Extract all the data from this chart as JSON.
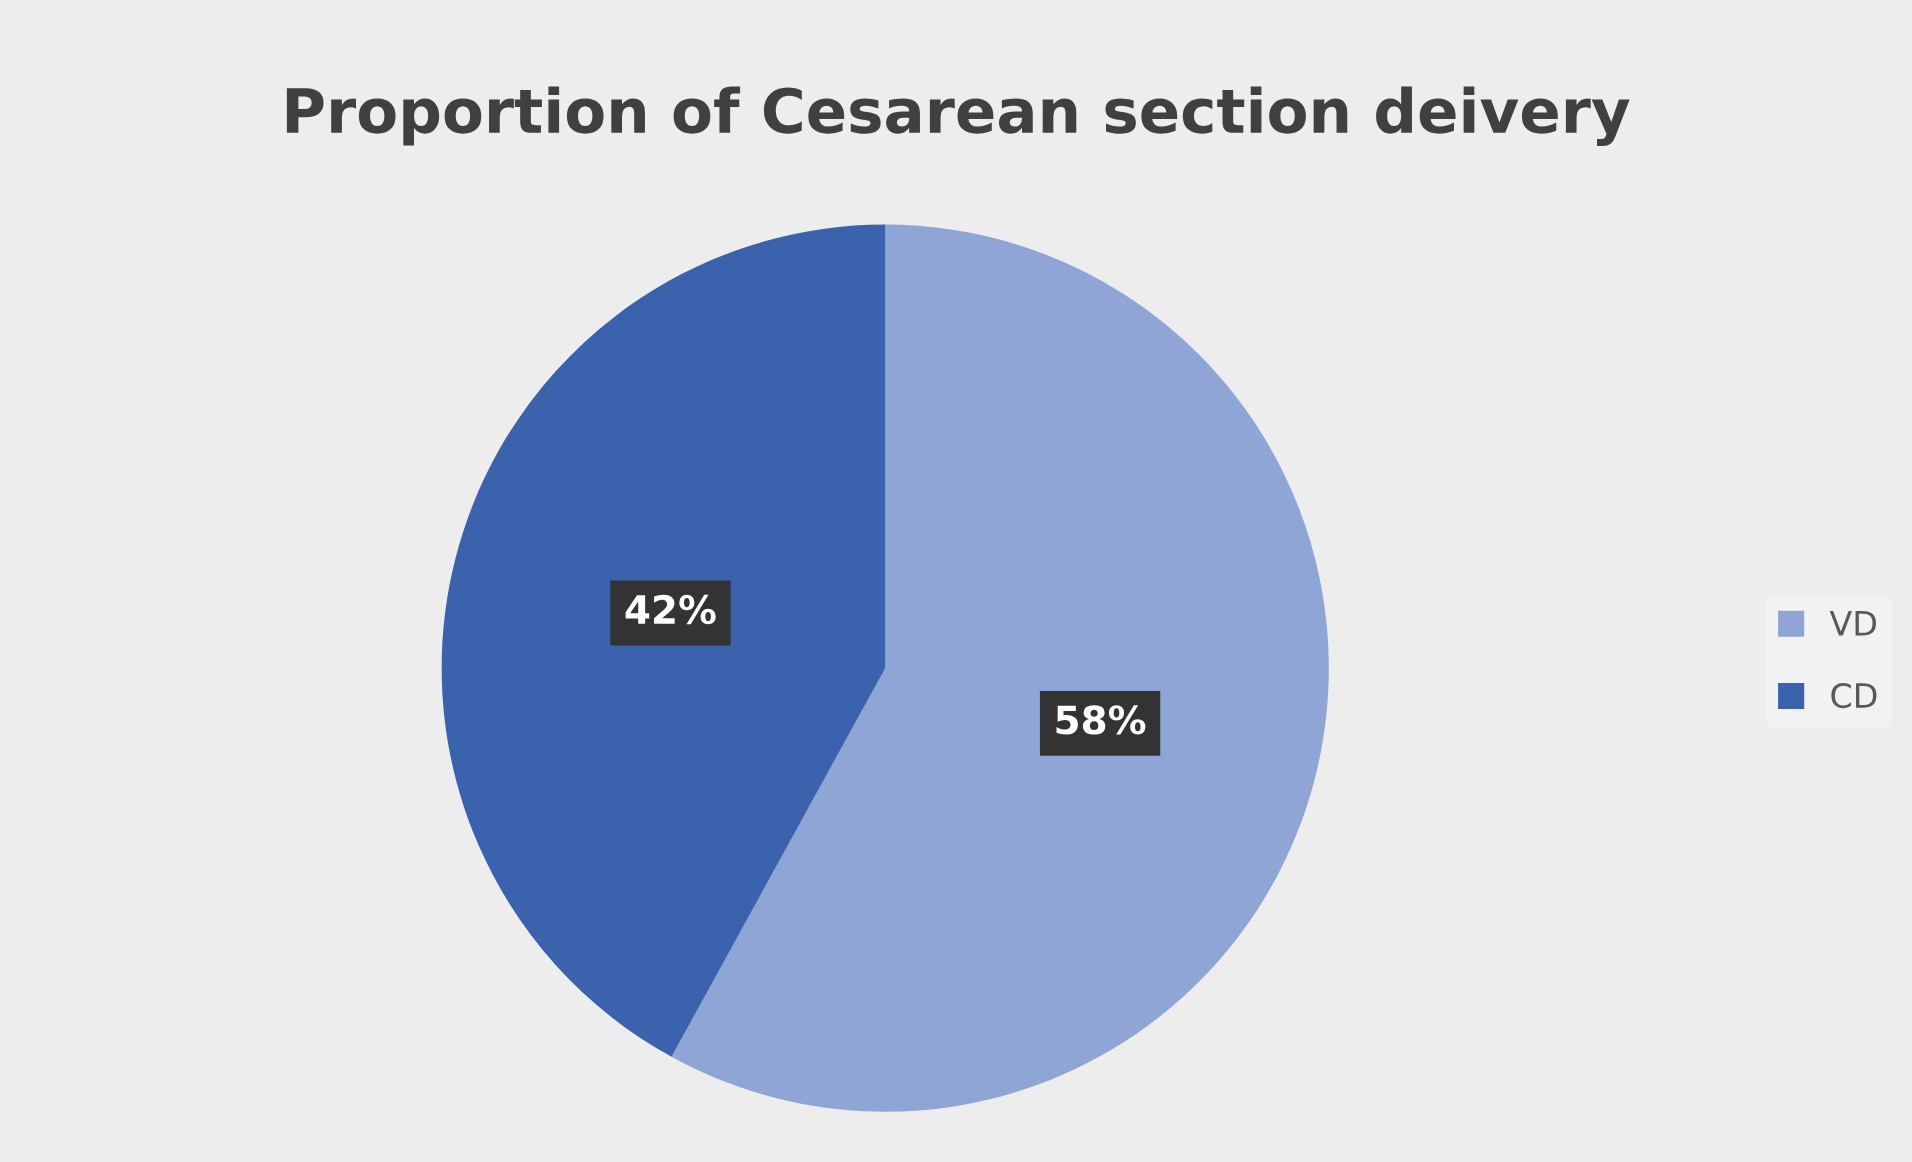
{
  "chart_data": {
    "type": "pie",
    "title": "Proportion of Cesarean section deivery",
    "categories": [
      "VD",
      "CD"
    ],
    "values": [
      58,
      42
    ],
    "colors": [
      "#8fa5d6",
      "#3a62ad"
    ],
    "value_labels": [
      "58%",
      "42%"
    ],
    "legend": "right"
  }
}
